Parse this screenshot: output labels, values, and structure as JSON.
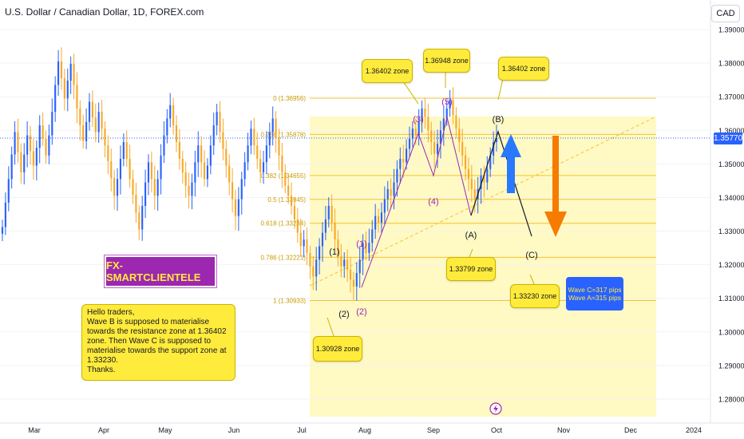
{
  "header": {
    "title": "U.S. Dollar / Canadian Dollar, 1D, FOREX.com",
    "currency": "CAD"
  },
  "colors": {
    "up": "#2962ff",
    "down": "#f7a928",
    "fib_zone": "#fff9c4",
    "fib_line": "#f4c430",
    "wave_label_purple": "#9c27b0",
    "bullish_arrow": "#2979ff",
    "bearish_arrow": "#f57c00",
    "price_badge": "#2962ff"
  },
  "chart_data": {
    "type": "candlestick",
    "yaxis": {
      "ylim": [
        1.275,
        1.395
      ],
      "ticks": [
        "1.39000",
        "1.38000",
        "1.37000",
        "1.36000",
        "1.35000",
        "1.34000",
        "1.33000",
        "1.32000",
        "1.31000",
        "1.30000",
        "1.29000",
        "1.28000"
      ]
    },
    "xaxis": {
      "labels": [
        "Mar",
        "Apr",
        "May",
        "Jun",
        "Jul",
        "Aug",
        "Sep",
        "Oct",
        "Nov",
        "Dec",
        "2024"
      ]
    },
    "current_price": "1.35770",
    "fib_levels": [
      {
        "label": "0 (1.36956)",
        "value": 1.36956
      },
      {
        "label": "0.236 (1.35878)",
        "value": 1.35878
      },
      {
        "label": "0.382 (1.34655)",
        "value": 1.34655
      },
      {
        "label": "0.5 (1.33945)",
        "value": 1.33945
      },
      {
        "label": "0.618 (1.33234)",
        "value": 1.33234
      },
      {
        "label": "0.786 (1.32221)",
        "value": 1.32221
      },
      {
        "label": "1 (1.30933)",
        "value": 1.30933
      }
    ],
    "wave_labels": [
      "(1)",
      "(2)",
      "(1)",
      "(2)",
      "(3)",
      "(4)",
      "(5)",
      "(A)",
      "(B)",
      "(C)"
    ],
    "candles_close": [
      1.3312,
      1.3385,
      1.3455,
      1.3528,
      1.3595,
      1.3535,
      1.3475,
      1.3528,
      1.3585,
      1.3538,
      1.3495,
      1.3548,
      1.3615,
      1.3575,
      1.3525,
      1.3585,
      1.3655,
      1.3735,
      1.3805,
      1.3755,
      1.3695,
      1.3748,
      1.3798,
      1.3735,
      1.3665,
      1.3615,
      1.3568,
      1.3625,
      1.3685,
      1.3638,
      1.3595,
      1.3655,
      1.3605,
      1.3555,
      1.3508,
      1.3458,
      1.3405,
      1.3455,
      1.3515,
      1.3565,
      1.3515,
      1.3455,
      1.3408,
      1.3355,
      1.3305,
      1.3375,
      1.3445,
      1.3505,
      1.3455,
      1.3405,
      1.3455,
      1.3525,
      1.3585,
      1.3635,
      1.3675,
      1.3615,
      1.3565,
      1.3515,
      1.3475,
      1.3435,
      1.3405,
      1.3445,
      1.3505,
      1.3555,
      1.3505,
      1.3455,
      1.3495,
      1.3555,
      1.3615,
      1.3655,
      1.3595,
      1.3545,
      1.3495,
      1.3445,
      1.3395,
      1.3345,
      1.3395,
      1.3455,
      1.3505,
      1.3555,
      1.3605,
      1.3555,
      1.3515,
      1.3475,
      1.3505,
      1.3555,
      1.3595,
      1.3635,
      1.3575,
      1.3525,
      1.3475,
      1.3435,
      1.3405,
      1.3375,
      1.3335,
      1.3295,
      1.3255,
      1.3275,
      1.3235,
      1.3195,
      1.3165,
      1.3215,
      1.3255,
      1.3295,
      1.3335,
      1.3375,
      1.3325,
      1.3275,
      1.3225,
      1.3195,
      1.3215,
      1.3185,
      1.3155,
      1.3135,
      1.3175,
      1.3215,
      1.3265,
      1.3235,
      1.3265,
      1.3305,
      1.3345,
      1.3325,
      1.3355,
      1.3395,
      1.3425,
      1.3405,
      1.3445,
      1.3485,
      1.3515,
      1.3505,
      1.3545,
      1.3575,
      1.3605,
      1.3585,
      1.3625,
      1.3665,
      1.364,
      1.36,
      1.3565,
      1.353,
      1.356,
      1.36,
      1.3635,
      1.3665,
      1.369,
      1.3645,
      1.3605,
      1.3565,
      1.3525,
      1.3485,
      1.3455,
      1.3425,
      1.3395,
      1.3425,
      1.3465,
      1.3445,
      1.3485,
      1.3525,
      1.3565,
      1.3577
    ]
  },
  "callouts": [
    {
      "key": "c1",
      "text": "1.36402 zone"
    },
    {
      "key": "c2",
      "text": "1.36948 zone"
    },
    {
      "key": "c3",
      "text": "1.36402 zone"
    },
    {
      "key": "c4",
      "text": "1.33799 zone"
    },
    {
      "key": "c5",
      "text": "1.33230 zone"
    },
    {
      "key": "c6",
      "text": "1.30928 zone"
    }
  ],
  "brand": "FX-SMARTCLIENTELE",
  "note": "Hello traders,\nWave B is supposed to materialise towards the resistance zone at 1.36402 zone. Then Wave C is supposed to materialise towards the support zone at 1.33230.\nThanks.",
  "pips": {
    "line1": "Wave C=317 pips",
    "line2": "Wave A=315 pips"
  }
}
